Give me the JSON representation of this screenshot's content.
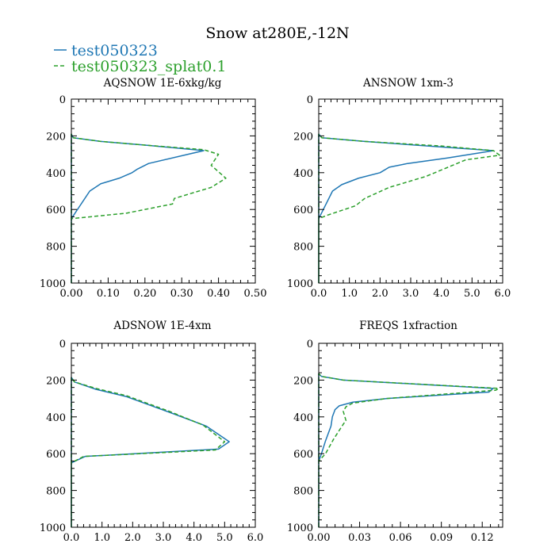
{
  "title": "Snow at280E,-12N",
  "colors": {
    "series1": "#1f77b4",
    "series2": "#2ca02c",
    "axis": "#000000"
  },
  "legend": [
    {
      "name": "test050323",
      "style": "solid",
      "color": "#1f77b4"
    },
    {
      "name": "test050323_splat0.1",
      "style": "dashed",
      "color": "#2ca02c"
    }
  ],
  "chart_data": [
    {
      "type": "line",
      "title": "AQSNOW  1E-6xkg/kg",
      "xlim": [
        0,
        0.5
      ],
      "xticks": [
        0,
        0.1,
        0.2,
        0.3,
        0.4,
        0.5
      ],
      "xtick_labels": [
        "0.00",
        "0.10",
        "0.20",
        "0.30",
        "0.40",
        "0.50"
      ],
      "ylim": [
        1000,
        0
      ],
      "yticks": [
        0,
        200,
        400,
        600,
        800,
        1000
      ],
      "ytick_labels": [
        "0",
        "200",
        "400",
        "600",
        "800",
        "1000"
      ],
      "series": [
        {
          "name": "test050323",
          "x": [
            0,
            0,
            0.005,
            0.08,
            0.2,
            0.36,
            0.21,
            0.18,
            0.165,
            0.13,
            0.08,
            0.05,
            0.02,
            0.0,
            0.0
          ],
          "y": [
            1000,
            190,
            210,
            230,
            250,
            280,
            350,
            380,
            400,
            430,
            460,
            500,
            590,
            650,
            1000
          ]
        },
        {
          "name": "test050323_splat0.1",
          "x": [
            0,
            0,
            0.005,
            0.08,
            0.2,
            0.36,
            0.4,
            0.38,
            0.42,
            0.38,
            0.28,
            0.275,
            0.15,
            0.0,
            0.0
          ],
          "y": [
            1000,
            190,
            210,
            230,
            250,
            275,
            300,
            360,
            430,
            480,
            540,
            570,
            620,
            650,
            1000
          ]
        }
      ]
    },
    {
      "type": "line",
      "title": "ANSNOW  1xm-3",
      "xlim": [
        0,
        6
      ],
      "xticks": [
        0,
        1,
        2,
        3,
        4,
        5,
        6
      ],
      "xtick_labels": [
        "0.0",
        "1.0",
        "2.0",
        "3.0",
        "4.0",
        "5.0",
        "6.0"
      ],
      "ylim": [
        1000,
        0
      ],
      "yticks": [
        0,
        200,
        400,
        600,
        800,
        1000
      ],
      "ytick_labels": [
        "0",
        "200",
        "400",
        "600",
        "800",
        "1000"
      ],
      "series": [
        {
          "name": "test050323",
          "x": [
            0,
            0,
            0.1,
            1.5,
            4.0,
            5.7,
            4.2,
            2.9,
            2.3,
            2.0,
            1.3,
            0.75,
            0.45,
            0.15,
            0.0,
            0.0
          ],
          "y": [
            1000,
            190,
            210,
            230,
            260,
            280,
            320,
            350,
            370,
            400,
            430,
            465,
            500,
            600,
            650,
            1000
          ]
        },
        {
          "name": "test050323_splat0.1",
          "x": [
            0,
            0,
            0.1,
            1.5,
            4.0,
            5.7,
            5.9,
            4.8,
            3.5,
            2.3,
            1.5,
            1.2,
            0.3,
            0.0,
            0.0
          ],
          "y": [
            1000,
            190,
            210,
            230,
            255,
            280,
            305,
            330,
            420,
            480,
            540,
            580,
            630,
            650,
            1000
          ]
        }
      ]
    },
    {
      "type": "line",
      "title": "ADSNOW  1E-4xm",
      "xlim": [
        0,
        6
      ],
      "xticks": [
        0,
        1,
        2,
        3,
        4,
        5,
        6
      ],
      "xtick_labels": [
        "0.0",
        "1.0",
        "2.0",
        "3.0",
        "4.0",
        "5.0",
        "6.0"
      ],
      "ylim": [
        1000,
        0
      ],
      "yticks": [
        0,
        200,
        400,
        600,
        800,
        1000
      ],
      "ytick_labels": [
        "0",
        "200",
        "400",
        "600",
        "800",
        "1000"
      ],
      "series": [
        {
          "name": "test050323",
          "x": [
            0,
            0,
            0.1,
            0.8,
            1.8,
            3.2,
            4.4,
            5.15,
            4.8,
            0.45,
            0.0,
            0.0
          ],
          "y": [
            1000,
            185,
            210,
            250,
            290,
            375,
            450,
            535,
            575,
            615,
            650,
            1000
          ]
        },
        {
          "name": "test050323_splat0.1",
          "x": [
            0,
            0,
            0.1,
            0.8,
            1.8,
            3.2,
            4.3,
            5.0,
            4.7,
            0.4,
            0.0,
            0.0
          ],
          "y": [
            1000,
            185,
            210,
            245,
            285,
            370,
            445,
            535,
            580,
            615,
            650,
            1000
          ]
        }
      ]
    },
    {
      "type": "line",
      "title": "FREQS  1xfraction",
      "xlim": [
        0,
        0.135
      ],
      "xticks": [
        0,
        0.03,
        0.06,
        0.09,
        0.12
      ],
      "xtick_labels": [
        "0.00",
        "0.03",
        "0.06",
        "0.09",
        "0.12"
      ],
      "ylim": [
        1000,
        0
      ],
      "yticks": [
        0,
        200,
        400,
        600,
        800,
        1000
      ],
      "ytick_labels": [
        "0",
        "200",
        "400",
        "600",
        "800",
        "1000"
      ],
      "series": [
        {
          "name": "test050323",
          "x": [
            0,
            0,
            0.002,
            0.018,
            0.128,
            0.125,
            0.05,
            0.025,
            0.015,
            0.012,
            0.01,
            0.009,
            0.005,
            0.002,
            0.0,
            0.0
          ],
          "y": [
            1000,
            165,
            180,
            200,
            245,
            265,
            300,
            320,
            340,
            360,
            400,
            450,
            530,
            600,
            640,
            1000
          ]
        },
        {
          "name": "test050323_splat0.1",
          "x": [
            0,
            0,
            0.002,
            0.018,
            0.132,
            0.13,
            0.05,
            0.025,
            0.02,
            0.018,
            0.02,
            0.018,
            0.011,
            0.008,
            0.005,
            0.0,
            0.0
          ],
          "y": [
            1000,
            165,
            180,
            200,
            245,
            255,
            300,
            325,
            345,
            370,
            420,
            440,
            520,
            560,
            600,
            640,
            1000
          ]
        }
      ]
    }
  ]
}
